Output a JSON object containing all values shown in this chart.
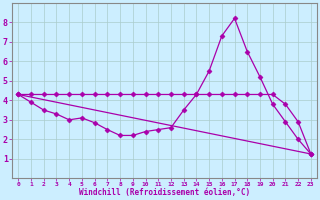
{
  "background_color": "#cceeff",
  "grid_color": "#aacccc",
  "line_color": "#aa00aa",
  "marker_color": "#aa00aa",
  "xlabel": "Windchill (Refroidissement éolien,°C)",
  "xlim": [
    -0.5,
    23.5
  ],
  "ylim": [
    0,
    9
  ],
  "xticks": [
    0,
    1,
    2,
    3,
    4,
    5,
    6,
    7,
    8,
    9,
    10,
    11,
    12,
    13,
    14,
    15,
    16,
    17,
    18,
    19,
    20,
    21,
    22,
    23
  ],
  "yticks": [
    1,
    2,
    3,
    4,
    5,
    6,
    7,
    8
  ],
  "lines": [
    {
      "x": [
        0,
        1,
        2,
        3,
        4,
        5,
        6,
        7,
        8,
        9,
        10,
        11,
        12,
        13,
        14,
        15,
        16,
        17,
        18,
        19,
        20,
        21,
        22,
        23
      ],
      "y": [
        4.3,
        3.9,
        3.5,
        3.3,
        3.0,
        3.1,
        2.85,
        2.5,
        2.2,
        2.2,
        2.4,
        2.5,
        2.6,
        3.5,
        4.3,
        5.5,
        7.3,
        8.2,
        6.5,
        5.2,
        3.8,
        2.9,
        2.0,
        1.25
      ]
    },
    {
      "x": [
        0,
        1,
        2,
        3,
        4,
        5,
        6,
        7,
        8,
        9,
        10,
        11,
        12,
        13,
        14,
        15,
        16,
        17,
        18,
        19,
        20,
        21,
        22,
        23
      ],
      "y": [
        4.3,
        4.3,
        4.3,
        4.3,
        4.3,
        4.3,
        4.3,
        4.3,
        4.3,
        4.3,
        4.3,
        4.3,
        4.3,
        4.3,
        4.3,
        4.3,
        4.3,
        4.3,
        4.3,
        4.3,
        4.3,
        3.8,
        2.9,
        1.25
      ]
    },
    {
      "x": [
        0,
        23
      ],
      "y": [
        4.3,
        1.25
      ]
    }
  ]
}
